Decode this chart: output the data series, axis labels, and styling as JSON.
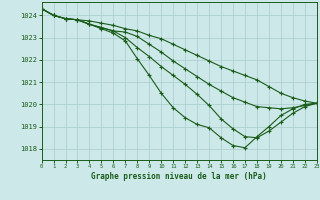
{
  "title": "Graphe pression niveau de la mer (hPa)",
  "bg_color": "#cce8e8",
  "grid_color": "#aacccc",
  "line_color": "#1a5c1a",
  "xlim": [
    0,
    23
  ],
  "ylim": [
    1017.5,
    1024.6
  ],
  "yticks": [
    1018,
    1019,
    1020,
    1021,
    1022,
    1023,
    1024
  ],
  "xticks": [
    0,
    1,
    2,
    3,
    4,
    5,
    6,
    7,
    8,
    9,
    10,
    11,
    12,
    13,
    14,
    15,
    16,
    17,
    18,
    19,
    20,
    21,
    22,
    23
  ],
  "series": [
    [
      1024.3,
      1024.0,
      1023.85,
      1023.8,
      1023.75,
      1023.65,
      1023.55,
      1023.4,
      1023.3,
      1023.1,
      1022.95,
      1022.7,
      1022.45,
      1022.2,
      1021.95,
      1021.7,
      1021.5,
      1021.3,
      1021.1,
      1020.8,
      1020.5,
      1020.3,
      1020.15,
      1020.05
    ],
    [
      1024.3,
      1024.0,
      1023.85,
      1023.8,
      1023.6,
      1023.45,
      1023.3,
      1023.25,
      1023.05,
      1022.7,
      1022.35,
      1021.95,
      1021.6,
      1021.25,
      1020.9,
      1020.6,
      1020.3,
      1020.1,
      1019.9,
      1019.85,
      1019.8,
      1019.85,
      1019.95,
      1020.05
    ],
    [
      1024.3,
      1024.0,
      1023.85,
      1023.8,
      1023.6,
      1023.45,
      1023.3,
      1023.0,
      1022.55,
      1022.15,
      1021.7,
      1021.3,
      1020.9,
      1020.45,
      1019.95,
      1019.35,
      1018.9,
      1018.55,
      1018.5,
      1018.8,
      1019.2,
      1019.6,
      1019.9,
      1020.05
    ],
    [
      1024.3,
      1024.0,
      1023.85,
      1023.8,
      1023.6,
      1023.4,
      1023.2,
      1022.85,
      1022.05,
      1021.3,
      1020.5,
      1019.85,
      1019.4,
      1019.1,
      1018.95,
      1018.5,
      1018.15,
      1018.05,
      1018.55,
      1019.0,
      1019.5,
      1019.8,
      1020.0,
      1020.05
    ]
  ]
}
